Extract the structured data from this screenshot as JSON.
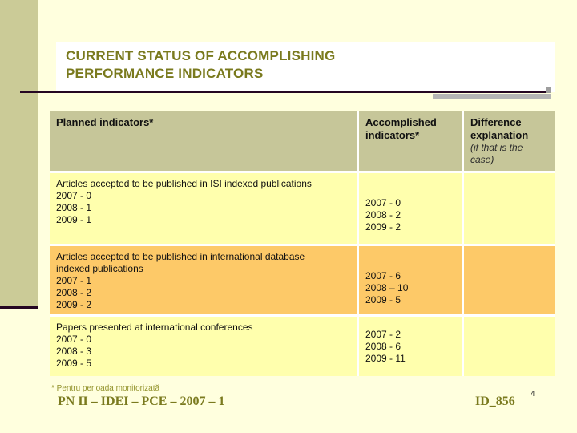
{
  "slide": {
    "title": "CURRENT STATUS OF ACCOMPLISHING\nPERFORMANCE INDICATORS"
  },
  "table": {
    "columns": {
      "planned": "Planned indicators*",
      "accomplished": "Accomplished indicators*",
      "difference": "Difference explanation",
      "difference_note": "(if that is the case)"
    },
    "rows": [
      {
        "planned_desc": "Articles accepted to be published in ISI indexed publications",
        "planned_values": [
          "2007 - 0",
          "2008 - 1",
          "2009 - 1"
        ],
        "accomplished_values": [
          "2007 - 0",
          "2008 - 2",
          "2009 - 2"
        ],
        "difference_explanation": ""
      },
      {
        "planned_desc": "Articles accepted to be published in international database indexed publications",
        "planned_values": [
          "2007 - 1",
          "2008 - 2",
          "2009 - 2"
        ],
        "accomplished_values": [
          "2007 - 6",
          "2008 – 10",
          "2009 - 5"
        ],
        "difference_explanation": ""
      },
      {
        "planned_desc": "Papers presented at international conferences",
        "planned_values": [
          "2007 - 0",
          "2008 - 3",
          "2009 - 5"
        ],
        "accomplished_values": [
          "2007 - 2",
          "2008 - 6",
          "2009 - 11"
        ],
        "difference_explanation": ""
      }
    ]
  },
  "footer": {
    "footnote": "* Pentru perioada monitorizată",
    "project_code": "PN II – IDEI – PCE – 2007 – 1",
    "project_id": "ID_856",
    "page_number": "4"
  },
  "colors": {
    "background": "#FFFFDE",
    "accent_bar": "#CBCB97",
    "title_text": "#7A7A1E",
    "header_bg": "#C6C699",
    "row_yellow": "#FFFFAD",
    "row_orange": "#FDC968",
    "underline_dark": "#250622",
    "underline_gray": "#B5B5B5"
  }
}
